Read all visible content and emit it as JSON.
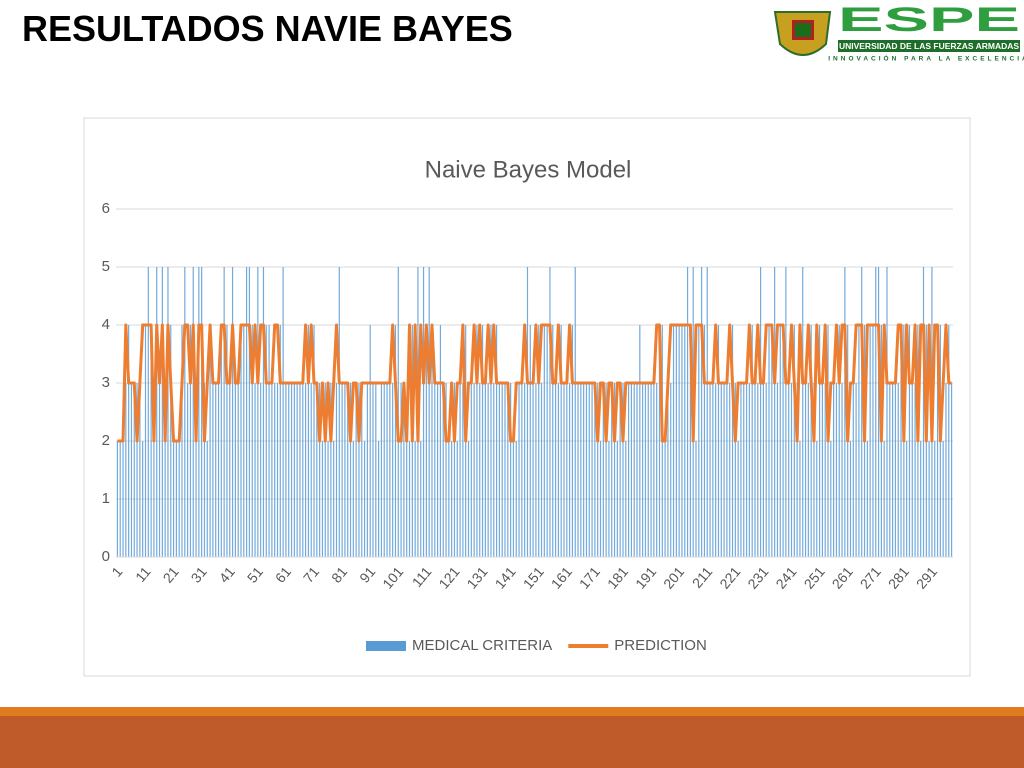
{
  "header": {
    "title": "RESULTADOS NAVIE BAYES",
    "logo_text": "ESPE",
    "logo_subtitle": "UNIVERSIDAD DE LAS FUERZAS ARMADAS",
    "logo_motto": "INNOVACIÓN PARA LA EXCELENCIA"
  },
  "chart_data": {
    "type": "bar-line",
    "title": "Naive Bayes Model",
    "ylim": [
      0,
      6
    ],
    "yticks": [
      0,
      1,
      2,
      3,
      4,
      5,
      6
    ],
    "grid": true,
    "legend": "bottom",
    "categories": [
      1,
      null,
      null,
      null,
      null,
      null,
      null,
      null,
      null,
      null,
      11,
      null,
      null,
      null,
      null,
      null,
      null,
      null,
      null,
      null,
      21,
      null,
      null,
      null,
      null,
      null,
      null,
      null,
      null,
      null,
      31,
      null,
      null,
      null,
      null,
      null,
      null,
      null,
      null,
      null,
      41,
      null,
      null,
      null,
      null,
      null,
      null,
      null,
      null,
      null,
      51,
      null,
      null,
      null,
      null,
      null,
      null,
      null,
      null,
      null,
      61,
      null,
      null,
      null,
      null,
      null,
      null,
      null,
      null,
      null,
      71,
      null,
      null,
      null,
      null,
      null,
      null,
      null,
      null,
      null,
      81,
      null,
      null,
      null,
      null,
      null,
      null,
      null,
      null,
      null,
      91,
      null,
      null,
      null,
      null,
      null,
      null,
      null,
      null,
      null,
      101,
      null,
      null,
      null,
      null,
      null,
      null,
      null,
      null,
      null,
      111,
      null,
      null,
      null,
      null,
      null,
      null,
      null,
      null,
      null,
      121,
      null,
      null,
      null,
      null,
      null,
      null,
      null,
      null,
      null,
      131,
      null,
      null,
      null,
      null,
      null,
      null,
      null,
      null,
      null,
      141,
      null,
      null,
      null,
      null,
      null,
      null,
      null,
      null,
      null,
      151,
      null,
      null,
      null,
      null,
      null,
      null,
      null,
      null,
      null,
      161,
      null,
      null,
      null,
      null,
      null,
      null,
      null,
      null,
      null,
      171,
      null,
      null,
      null,
      null,
      null,
      null,
      null,
      null,
      null,
      181,
      null,
      null,
      null,
      null,
      null,
      null,
      null,
      null,
      null,
      191,
      null,
      null,
      null,
      null,
      null,
      null,
      null,
      null,
      null,
      201,
      null,
      null,
      null,
      null,
      null,
      null,
      null,
      null,
      null,
      211,
      null,
      null,
      null,
      null,
      null,
      null,
      null,
      null,
      null,
      221,
      null,
      null,
      null,
      null,
      null,
      null,
      null,
      null,
      null,
      231,
      null,
      null,
      null,
      null,
      null,
      null,
      null,
      null,
      null,
      241,
      null,
      null,
      null,
      null,
      null,
      null,
      null,
      null,
      null,
      251,
      null,
      null,
      null,
      null,
      null,
      null,
      null,
      null,
      null,
      261,
      null,
      null,
      null,
      null,
      null,
      null,
      null,
      null,
      null,
      271,
      null,
      null,
      null,
      null,
      null,
      null,
      null,
      null,
      null,
      281,
      null,
      null,
      null,
      null,
      null,
      null,
      null,
      null,
      null,
      291,
      null,
      null,
      null,
      null,
      null,
      null,
      null
    ],
    "series": [
      {
        "name": "MEDICAL CRITERIA",
        "type": "bar",
        "color": "#5b9bd5",
        "values": [
          2,
          2,
          2,
          3,
          4,
          3,
          3,
          3,
          3,
          2,
          4,
          5,
          4,
          2,
          5,
          3,
          5,
          2,
          5,
          4,
          2,
          2,
          2,
          4,
          5,
          3,
          4,
          5,
          2,
          5,
          5,
          3,
          2,
          4,
          3,
          3,
          3,
          4,
          5,
          4,
          3,
          5,
          3,
          3,
          4,
          4,
          5,
          5,
          4,
          3,
          5,
          3,
          5,
          4,
          4,
          3,
          3,
          3,
          4,
          5,
          3,
          3,
          3,
          3,
          3,
          3,
          3,
          3,
          4,
          3,
          4,
          3,
          3,
          2,
          3,
          2,
          3,
          2,
          3,
          5,
          3,
          3,
          3,
          3,
          2,
          3,
          3,
          3,
          2,
          3,
          4,
          3,
          3,
          2,
          3,
          3,
          3,
          3,
          3,
          4,
          5,
          3,
          3,
          2,
          2,
          4,
          2,
          5,
          2,
          5,
          4,
          5,
          4,
          3,
          3,
          4,
          3,
          3,
          2,
          2,
          3,
          2,
          3,
          3,
          4,
          2,
          3,
          3,
          4,
          3,
          4,
          3,
          3,
          4,
          3,
          4,
          3,
          3,
          3,
          3,
          3,
          2,
          2,
          3,
          3,
          3,
          5,
          4,
          3,
          3,
          4,
          3,
          4,
          4,
          5,
          4,
          3,
          3,
          4,
          3,
          3,
          3,
          4,
          5,
          3,
          3,
          3,
          3,
          3,
          3,
          3,
          3,
          2,
          3,
          3,
          2,
          3,
          3,
          2,
          3,
          3,
          2,
          3,
          3,
          3,
          3,
          4,
          3,
          3,
          3,
          3,
          3,
          3,
          4,
          4,
          2,
          3,
          3,
          4,
          4,
          4,
          4,
          4,
          5,
          4,
          5,
          2,
          4,
          5,
          4,
          5,
          3,
          3,
          3,
          4,
          3,
          3,
          3,
          3,
          4,
          3,
          2,
          3,
          3,
          3,
          3,
          4,
          3,
          3,
          5,
          3,
          3,
          4,
          4,
          5,
          3,
          4,
          4,
          5,
          3,
          3,
          4,
          3,
          2,
          5,
          3,
          3,
          4,
          3,
          2,
          4,
          3,
          3,
          4,
          2,
          3,
          3,
          4,
          3,
          5,
          4,
          2,
          3,
          3,
          4,
          5,
          4,
          2,
          4,
          4,
          5,
          5,
          4,
          2,
          5,
          3,
          3,
          3,
          3,
          4,
          4,
          2,
          4,
          3,
          3,
          4,
          2,
          5,
          4,
          2,
          5,
          2,
          4,
          4,
          2,
          3,
          4,
          3
        ]
      },
      {
        "name": "PREDICTION",
        "type": "line",
        "color": "#ed7d31",
        "values": [
          2,
          2,
          2,
          4,
          3,
          3,
          3,
          2,
          3,
          4,
          4,
          4,
          4,
          2,
          4,
          3,
          4,
          2,
          4,
          3,
          2,
          2,
          2,
          3,
          4,
          4,
          3,
          4,
          2,
          4,
          4,
          2,
          3,
          4,
          3,
          3,
          3,
          4,
          4,
          3,
          3,
          4,
          3,
          3,
          4,
          4,
          4,
          4,
          3,
          4,
          3,
          4,
          4,
          3,
          3,
          3,
          4,
          4,
          3,
          3,
          3,
          3,
          3,
          3,
          3,
          3,
          3,
          4,
          3,
          4,
          3,
          3,
          2,
          3,
          2,
          3,
          2,
          3,
          4,
          3,
          3,
          3,
          3,
          2,
          3,
          3,
          2,
          3,
          3,
          3,
          3,
          3,
          3,
          3,
          3,
          3,
          3,
          3,
          4,
          3,
          2,
          2,
          3,
          2,
          4,
          2,
          4,
          2,
          4,
          3,
          4,
          3,
          4,
          3,
          3,
          3,
          3,
          2,
          2,
          3,
          2,
          3,
          3,
          4,
          2,
          3,
          3,
          4,
          3,
          4,
          3,
          3,
          4,
          3,
          4,
          3,
          3,
          3,
          3,
          3,
          2,
          2,
          3,
          3,
          3,
          4,
          3,
          3,
          3,
          4,
          3,
          4,
          4,
          4,
          4,
          3,
          3,
          4,
          3,
          3,
          3,
          4,
          3,
          3,
          3,
          3,
          3,
          3,
          3,
          3,
          3,
          2,
          3,
          3,
          2,
          3,
          3,
          2,
          3,
          3,
          2,
          3,
          3,
          3,
          3,
          3,
          3,
          3,
          3,
          3,
          3,
          3,
          4,
          4,
          2,
          2,
          3,
          4,
          4,
          4,
          4,
          4,
          4,
          4,
          4,
          2,
          4,
          4,
          4,
          3,
          3,
          3,
          3,
          4,
          3,
          3,
          3,
          3,
          4,
          3,
          2,
          3,
          3,
          3,
          3,
          4,
          3,
          3,
          4,
          3,
          3,
          4,
          4,
          4,
          3,
          4,
          4,
          4,
          3,
          3,
          4,
          3,
          2,
          4,
          3,
          3,
          4,
          3,
          2,
          4,
          3,
          3,
          4,
          2,
          3,
          3,
          4,
          3,
          4,
          4,
          2,
          3,
          3,
          4,
          4,
          4,
          2,
          4,
          4,
          4,
          4,
          4,
          2,
          4,
          3,
          3,
          3,
          3,
          4,
          4,
          2,
          4,
          3,
          3,
          4,
          2,
          4,
          4,
          2,
          4,
          2,
          4,
          4,
          2,
          3,
          4,
          3,
          3
        ]
      }
    ]
  }
}
